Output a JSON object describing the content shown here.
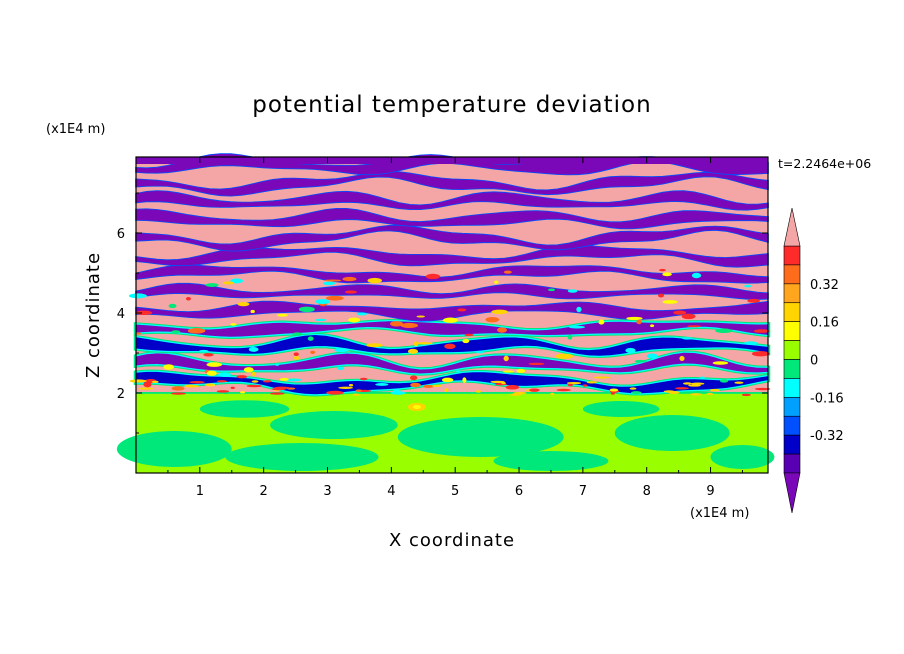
{
  "chart_data": {
    "type": "heatmap",
    "title": "potential temperature deviation",
    "xlabel": "X coordinate",
    "ylabel": "Z coordinate",
    "x_units": "(x1E4 m)",
    "y_units": "(x1E4 m)",
    "time_label": "t=2.2464e+06",
    "xlim": [
      0,
      9.9
    ],
    "ylim": [
      0,
      7.9
    ],
    "x_ticks": [
      "1",
      "2",
      "3",
      "4",
      "5",
      "6",
      "7",
      "8",
      "9"
    ],
    "y_ticks": [
      "2",
      "4",
      "6"
    ],
    "colorbar": {
      "levels": [
        -0.48,
        -0.4,
        -0.32,
        -0.24,
        -0.16,
        -0.08,
        0,
        0.08,
        0.16,
        0.24,
        0.32,
        0.4,
        0.48
      ],
      "labels": [
        "0.32",
        "0.16",
        "0",
        "-0.16",
        "-0.32"
      ],
      "label_values": [
        0.32,
        0.16,
        0,
        -0.16,
        -0.32
      ],
      "colors": {
        "above_max": "#f4a6a6",
        "bands_top_to_bottom": [
          "#ff2a2a",
          "#ff6d1c",
          "#ffa51e",
          "#ffd400",
          "#ffff00",
          "#99ff00",
          "#00e87a",
          "#00ffff",
          "#00a0ff",
          "#0050ff",
          "#0000c8",
          "#5a00b4"
        ],
        "below_min": "#7b08b8"
      }
    },
    "regions": [
      {
        "name": "lower layer",
        "z_range": [
          0,
          2.0
        ],
        "dominant_value": "0 to 0.08"
      },
      {
        "name": "banded upper layer",
        "z_range": [
          2.0,
          7.9
        ],
        "dominant_value": "alternating < -0.48 and > 0.48"
      }
    ]
  }
}
